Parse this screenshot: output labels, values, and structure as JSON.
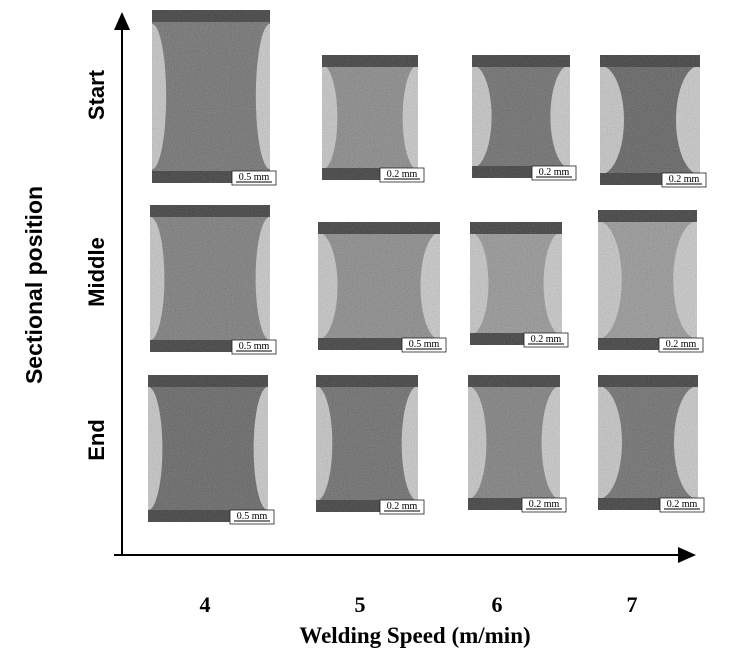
{
  "figure": {
    "y_axis_label": "Sectional position",
    "x_axis_label": "Welding Speed (m/min)",
    "rows": [
      "Start",
      "Middle",
      "End"
    ],
    "columns": [
      "4",
      "5",
      "6",
      "7"
    ],
    "scale_bars": [
      [
        "0.5 mm",
        "0.2 mm",
        "0.2 mm",
        "0.2 mm"
      ],
      [
        "0.5 mm",
        "0.5 mm",
        "0.2 mm",
        "0.2 mm"
      ],
      [
        "0.5 mm",
        "0.2 mm",
        "0.2 mm",
        "0.2 mm"
      ]
    ]
  }
}
